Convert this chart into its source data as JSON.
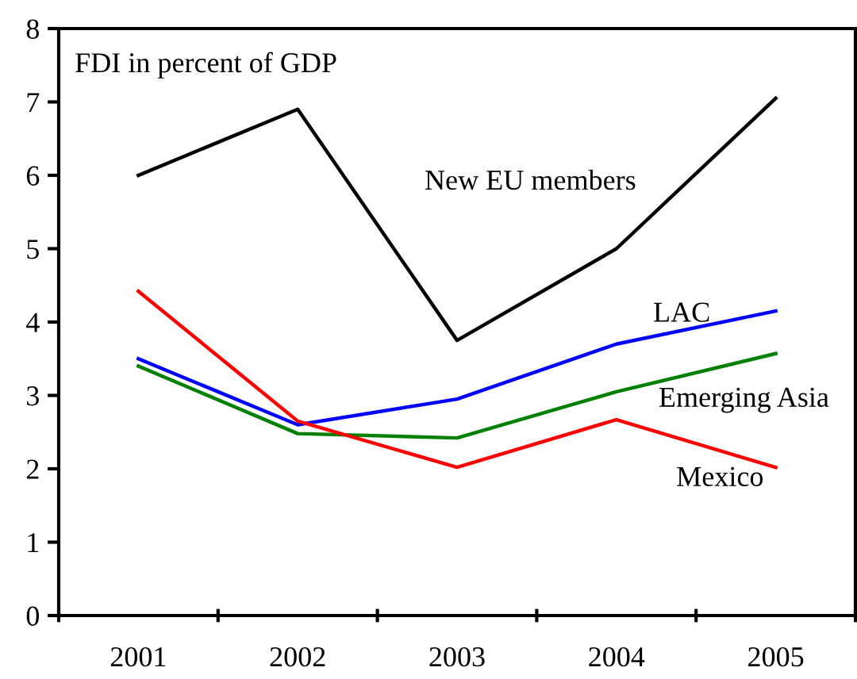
{
  "chart_data": {
    "type": "line",
    "title": "FDI in percent of GDP",
    "categories": [
      "2001",
      "2002",
      "2003",
      "2004",
      "2005"
    ],
    "series": [
      {
        "name": "New EU members",
        "color": "#000000",
        "values": [
          6.0,
          6.9,
          3.75,
          5.0,
          7.05
        ]
      },
      {
        "name": "LAC",
        "color": "#0000ff",
        "values": [
          3.5,
          2.6,
          2.95,
          3.7,
          4.15
        ]
      },
      {
        "name": "Emerging Asia",
        "color": "#008000",
        "values": [
          3.4,
          2.48,
          2.42,
          3.05,
          3.57
        ]
      },
      {
        "name": "Mexico",
        "color": "#ff0000",
        "values": [
          4.42,
          2.65,
          2.02,
          2.67,
          2.02
        ]
      }
    ],
    "ylim": [
      0,
      8
    ],
    "yticks": [
      0,
      1,
      2,
      3,
      4,
      5,
      6,
      7,
      8
    ],
    "grid": false,
    "legend": false,
    "marker": "none",
    "line_style": "solid"
  }
}
